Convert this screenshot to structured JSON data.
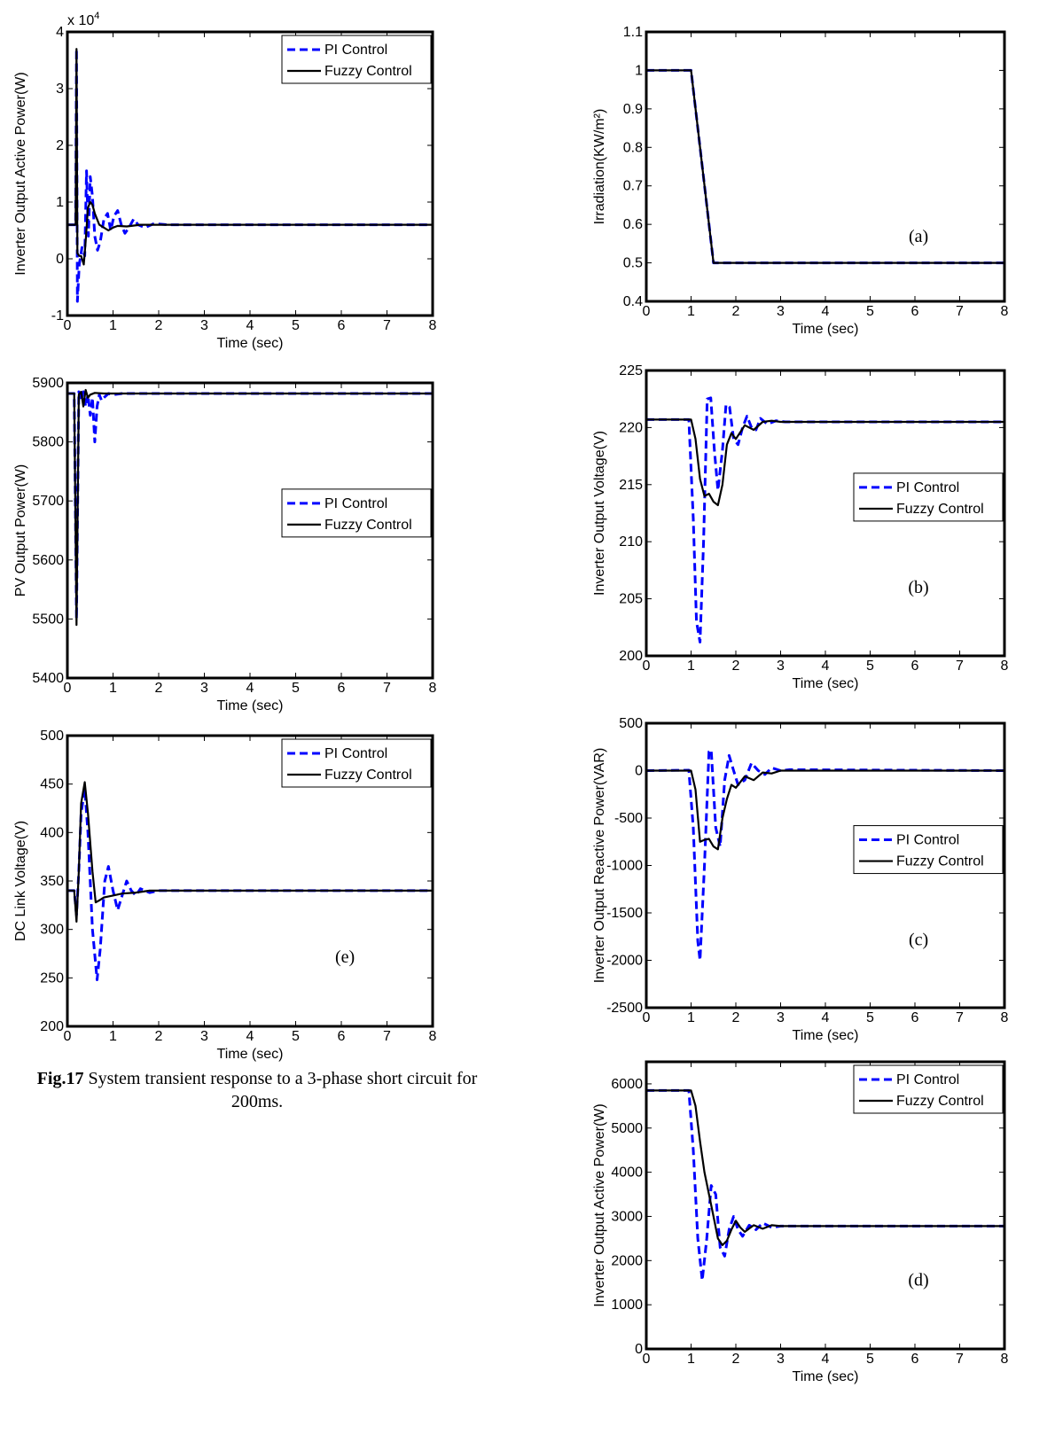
{
  "caption": {
    "label": "Fig.17",
    "text": " System transient response to a 3-phase short circuit for 200ms."
  },
  "colors": {
    "pi": "#0000ff",
    "fuzzy": "#000000"
  },
  "chart_data": [
    {
      "id": "left-active-power",
      "type": "line",
      "ylabel": "Inverter Output Active Power(W)",
      "xlabel": "Time (sec)",
      "xlim": [
        0,
        8
      ],
      "ylim": [
        -1,
        4
      ],
      "xticks": [
        0,
        1,
        2,
        3,
        4,
        5,
        6,
        7,
        8
      ],
      "yticks": [
        -1,
        0,
        1,
        2,
        3,
        4
      ],
      "exponent_label": "x 10",
      "exponent_power": "4",
      "panel_label": "",
      "legend_position": "top-right",
      "series": [
        {
          "name": "PI Control",
          "style": "dashed",
          "x": [
            0,
            0.1,
            0.18,
            0.2,
            0.22,
            0.26,
            0.32,
            0.38,
            0.42,
            0.46,
            0.5,
            0.55,
            0.6,
            0.66,
            0.72,
            0.8,
            0.88,
            0.95,
            1.02,
            1.1,
            1.18,
            1.26,
            1.35,
            1.45,
            1.55,
            1.7,
            1.9,
            2.2,
            8
          ],
          "y": [
            0.6,
            0.6,
            0.6,
            3.7,
            -0.75,
            -0.1,
            0.2,
            0.05,
            1.55,
            0.4,
            1.45,
            1.1,
            0.4,
            0.15,
            0.3,
            0.7,
            0.8,
            0.5,
            0.75,
            0.85,
            0.6,
            0.45,
            0.55,
            0.7,
            0.6,
            0.55,
            0.62,
            0.6,
            0.6
          ]
        },
        {
          "name": "Fuzzy Control",
          "style": "solid",
          "x": [
            0,
            0.1,
            0.18,
            0.2,
            0.22,
            0.26,
            0.3,
            0.36,
            0.4,
            0.45,
            0.5,
            0.55,
            0.6,
            0.7,
            0.8,
            0.9,
            1.0,
            1.1,
            1.3,
            1.6,
            2.0,
            8
          ],
          "y": [
            0.6,
            0.6,
            0.6,
            3.7,
            0.1,
            0.05,
            0.05,
            -0.1,
            0.3,
            0.9,
            1.0,
            0.95,
            0.8,
            0.6,
            0.55,
            0.5,
            0.55,
            0.58,
            0.57,
            0.6,
            0.6,
            0.6
          ]
        }
      ]
    },
    {
      "id": "pv-output-power",
      "type": "line",
      "ylabel": "PV Output Power(W)",
      "xlabel": "Time (sec)",
      "xlim": [
        0,
        8
      ],
      "ylim": [
        5400,
        5900
      ],
      "xticks": [
        0,
        1,
        2,
        3,
        4,
        5,
        6,
        7,
        8
      ],
      "yticks": [
        5400,
        5500,
        5600,
        5700,
        5800,
        5900
      ],
      "panel_label": "",
      "legend_position": "middle-right",
      "series": [
        {
          "name": "PI Control",
          "style": "dashed",
          "x": [
            0,
            0.15,
            0.2,
            0.25,
            0.3,
            0.35,
            0.4,
            0.45,
            0.5,
            0.55,
            0.6,
            0.65,
            0.7,
            0.75,
            0.8,
            0.9,
            1.0,
            1.2,
            8
          ],
          "y": [
            5882,
            5882,
            5500,
            5885,
            5870,
            5885,
            5860,
            5880,
            5845,
            5875,
            5800,
            5860,
            5880,
            5870,
            5875,
            5882,
            5880,
            5882,
            5882
          ]
        },
        {
          "name": "Fuzzy Control",
          "style": "solid",
          "x": [
            0,
            0.15,
            0.2,
            0.25,
            0.3,
            0.35,
            0.4,
            0.45,
            0.5,
            0.6,
            0.8,
            8
          ],
          "y": [
            5882,
            5882,
            5490,
            5880,
            5885,
            5860,
            5888,
            5875,
            5880,
            5883,
            5882,
            5882
          ]
        }
      ]
    },
    {
      "id": "dc-link-voltage",
      "type": "line",
      "ylabel": "DC Link Voltage(V)",
      "xlabel": "Time (sec)",
      "xlim": [
        0,
        8
      ],
      "ylim": [
        200,
        500
      ],
      "xticks": [
        0,
        1,
        2,
        3,
        4,
        5,
        6,
        7,
        8
      ],
      "yticks": [
        200,
        250,
        300,
        350,
        400,
        450,
        500
      ],
      "panel_label": "(e)",
      "legend_position": "top-right",
      "series": [
        {
          "name": "PI Control",
          "style": "dashed",
          "x": [
            0,
            0.15,
            0.2,
            0.25,
            0.3,
            0.38,
            0.45,
            0.55,
            0.65,
            0.72,
            0.82,
            0.9,
            1.0,
            1.1,
            1.2,
            1.3,
            1.4,
            1.5,
            1.6,
            1.7,
            1.8,
            2.0,
            8
          ],
          "y": [
            340,
            340,
            315,
            360,
            420,
            445,
            400,
            300,
            248,
            280,
            350,
            365,
            340,
            320,
            335,
            350,
            340,
            335,
            342,
            340,
            338,
            340,
            340
          ]
        },
        {
          "name": "Fuzzy Control",
          "style": "solid",
          "x": [
            0,
            0.15,
            0.2,
            0.25,
            0.3,
            0.38,
            0.45,
            0.55,
            0.62,
            0.7,
            0.8,
            1.0,
            1.2,
            1.5,
            1.8,
            8
          ],
          "y": [
            340,
            340,
            308,
            360,
            430,
            452,
            420,
            360,
            328,
            330,
            333,
            335,
            337,
            338,
            340,
            340
          ]
        }
      ]
    },
    {
      "id": "irradiation",
      "type": "line",
      "ylabel": "Irradiation(KW/m²)",
      "xlabel": "Time (sec)",
      "xlim": [
        0,
        8
      ],
      "ylim": [
        0.4,
        1.1
      ],
      "xticks": [
        0,
        1,
        2,
        3,
        4,
        5,
        6,
        7,
        8
      ],
      "yticks": [
        0.4,
        0.5,
        0.6,
        0.7,
        0.8,
        0.9,
        1,
        1.1
      ],
      "panel_label": "(a)",
      "legend_position": "none",
      "series": [
        {
          "name": "PI Control",
          "style": "dashed",
          "x": [
            0,
            1,
            1.5,
            8
          ],
          "y": [
            1,
            1,
            0.5,
            0.5
          ]
        },
        {
          "name": "Fuzzy Control",
          "style": "solid",
          "x": [
            0,
            1,
            1.5,
            8
          ],
          "y": [
            1,
            1,
            0.5,
            0.5
          ]
        }
      ]
    },
    {
      "id": "inverter-output-voltage",
      "type": "line",
      "ylabel": "Inverter Output Voltage(V)",
      "xlabel": "Time (sec)",
      "xlim": [
        0,
        8
      ],
      "ylim": [
        200,
        225
      ],
      "xticks": [
        0,
        1,
        2,
        3,
        4,
        5,
        6,
        7,
        8
      ],
      "yticks": [
        200,
        205,
        210,
        215,
        220,
        225
      ],
      "panel_label": "(b)",
      "legend_position": "middle-right",
      "series": [
        {
          "name": "PI Control",
          "style": "dashed",
          "x": [
            0,
            0.95,
            1.05,
            1.12,
            1.2,
            1.28,
            1.36,
            1.44,
            1.52,
            1.6,
            1.7,
            1.78,
            1.86,
            1.95,
            2.05,
            2.15,
            2.25,
            2.35,
            2.45,
            2.55,
            2.7,
            2.9,
            3.1,
            8
          ],
          "y": [
            220.7,
            220.7,
            212,
            203,
            201.2,
            210,
            222.5,
            222.6,
            218,
            214.5,
            218,
            222,
            221.8,
            219,
            218.5,
            220,
            221,
            220,
            219.8,
            220.8,
            220.3,
            220.6,
            220.5,
            220.5
          ]
        },
        {
          "name": "Fuzzy Control",
          "style": "solid",
          "x": [
            0,
            1.0,
            1.1,
            1.2,
            1.3,
            1.4,
            1.5,
            1.6,
            1.7,
            1.8,
            1.9,
            2.0,
            2.2,
            2.4,
            2.6,
            2.8,
            3.0,
            8
          ],
          "y": [
            220.7,
            220.7,
            219,
            215.5,
            214,
            214.2,
            213.5,
            213.2,
            215,
            218.5,
            219.5,
            219,
            220.2,
            219.8,
            220.5,
            220.6,
            220.5,
            220.5
          ]
        }
      ]
    },
    {
      "id": "inverter-reactive-power",
      "type": "line",
      "ylabel": "Inverter Output Reactive Power(VAR)",
      "xlabel": "Time (sec)",
      "xlim": [
        0,
        8
      ],
      "ylim": [
        -2500,
        500
      ],
      "xticks": [
        0,
        1,
        2,
        3,
        4,
        5,
        6,
        7,
        8
      ],
      "yticks": [
        -2500,
        -2000,
        -1500,
        -1000,
        -500,
        0,
        500
      ],
      "panel_label": "(c)",
      "legend_position": "middle-right",
      "series": [
        {
          "name": "PI Control",
          "style": "dashed",
          "x": [
            0,
            0.95,
            1.05,
            1.15,
            1.2,
            1.3,
            1.4,
            1.45,
            1.55,
            1.65,
            1.75,
            1.85,
            1.95,
            2.05,
            2.2,
            2.35,
            2.5,
            2.65,
            2.8,
            3.0,
            3.2,
            8
          ],
          "y": [
            0,
            5,
            -600,
            -1800,
            -2000,
            -1000,
            200,
            220,
            -600,
            -800,
            -100,
            160,
            0,
            -150,
            -100,
            80,
            0,
            -40,
            30,
            0,
            10,
            0
          ]
        },
        {
          "name": "Fuzzy Control",
          "style": "solid",
          "x": [
            0,
            1.0,
            1.1,
            1.2,
            1.3,
            1.4,
            1.5,
            1.6,
            1.7,
            1.8,
            1.9,
            2.0,
            2.2,
            2.4,
            2.6,
            2.8,
            3.0,
            8
          ],
          "y": [
            0,
            0,
            -200,
            -750,
            -730,
            -720,
            -800,
            -830,
            -500,
            -300,
            -150,
            -180,
            -60,
            -100,
            -20,
            -30,
            0,
            0
          ]
        }
      ]
    },
    {
      "id": "inverter-active-power-d",
      "type": "line",
      "ylabel": "Inverter Output Active Power(W)",
      "xlabel": "Time (sec)",
      "xlim": [
        0,
        8
      ],
      "ylim": [
        0,
        6500
      ],
      "xticks": [
        0,
        1,
        2,
        3,
        4,
        5,
        6,
        7,
        8
      ],
      "yticks": [
        0,
        1000,
        2000,
        3000,
        4000,
        5000,
        6000
      ],
      "panel_label": "(d)",
      "legend_position": "top-right",
      "series": [
        {
          "name": "PI Control",
          "style": "dashed",
          "x": [
            0,
            0.95,
            1.05,
            1.15,
            1.25,
            1.35,
            1.45,
            1.55,
            1.65,
            1.75,
            1.85,
            1.95,
            2.05,
            2.15,
            2.3,
            2.45,
            2.6,
            2.8,
            3.0,
            8
          ],
          "y": [
            5850,
            5850,
            4500,
            2500,
            1550,
            2500,
            3700,
            3500,
            2300,
            2100,
            2700,
            3000,
            2700,
            2550,
            2800,
            2700,
            2850,
            2750,
            2780,
            2780
          ]
        },
        {
          "name": "Fuzzy Control",
          "style": "solid",
          "x": [
            0,
            1.0,
            1.1,
            1.2,
            1.3,
            1.4,
            1.5,
            1.6,
            1.7,
            1.8,
            1.9,
            2.0,
            2.1,
            2.2,
            2.4,
            2.6,
            2.8,
            3.0,
            8
          ],
          "y": [
            5850,
            5850,
            5500,
            4700,
            4000,
            3500,
            3000,
            2500,
            2350,
            2450,
            2700,
            2900,
            2750,
            2650,
            2800,
            2720,
            2800,
            2780,
            2780
          ]
        }
      ]
    }
  ]
}
